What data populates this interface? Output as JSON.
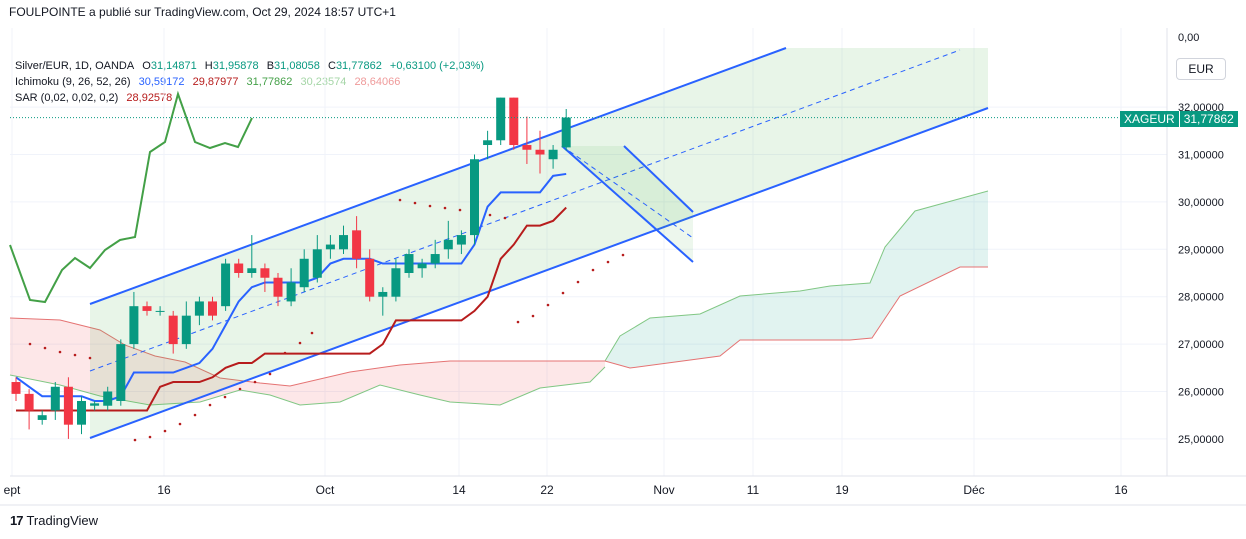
{
  "header": {
    "publisher_line": "FOULPOINTE a publié sur TradingView.com, Oct 29, 2024 18:57 UTC+1"
  },
  "legend": {
    "instrument": "Silver/EUR, 1D, OANDA",
    "o_label": "O",
    "o_value": "31,14871",
    "h_label": "H",
    "h_value": "31,95878",
    "b_label": "B",
    "b_value": "31,08058",
    "c_label": "C",
    "c_value": "31,77862",
    "change": "+0,63100 (+2,03%)",
    "ichimoku_name": "Ichimoku (9, 26, 52, 26)",
    "ichimoku_values": [
      "30,59172",
      "29,87977",
      "31,77862",
      "30,23574",
      "28,64066"
    ],
    "ichimoku_colors": [
      "#2962ff",
      "#b71c1c",
      "#43a047",
      "#a5d6a7",
      "#ef9a9a"
    ],
    "sar_name": "SAR (0,02, 0,02, 0,2)",
    "sar_value": "28,92578",
    "sar_color": "#b71c1c",
    "up_color": "#089981",
    "down_color": "#f23645"
  },
  "currency_button": "EUR",
  "price_tag": {
    "symbol": "XAGEUR",
    "price": "31,77862"
  },
  "footer": {
    "logo_text": "TradingView"
  },
  "chart_data": {
    "type": "candlestick",
    "title": "Silver/EUR, 1D, OANDA",
    "y_axis_labels": [
      "32,00000",
      "31,00000",
      "30,00000",
      "29,00000",
      "28,00000",
      "27,00000",
      "26,00000",
      "25,00000"
    ],
    "y_values": [
      32,
      31,
      30,
      29,
      28,
      27,
      26,
      25
    ],
    "y_zero_label": "0,00",
    "x_axis_labels": [
      "ept",
      "16",
      "Oct",
      "14",
      "22",
      "Nov",
      "11",
      "19",
      "Déc",
      "16"
    ],
    "last_price": 31.77862,
    "candles": [
      {
        "o": 26.2,
        "h": 26.3,
        "l": 25.8,
        "c": 25.95
      },
      {
        "o": 25.95,
        "h": 26.05,
        "l": 25.2,
        "c": 25.6
      },
      {
        "o": 25.4,
        "h": 25.6,
        "l": 25.3,
        "c": 25.5
      },
      {
        "o": 25.6,
        "h": 26.2,
        "l": 25.4,
        "c": 26.1
      },
      {
        "o": 26.1,
        "h": 26.3,
        "l": 25.0,
        "c": 25.3
      },
      {
        "o": 25.3,
        "h": 25.9,
        "l": 25.1,
        "c": 25.8
      },
      {
        "o": 25.7,
        "h": 25.8,
        "l": 25.6,
        "c": 25.75
      },
      {
        "o": 25.7,
        "h": 26.1,
        "l": 25.6,
        "c": 26.0
      },
      {
        "o": 25.8,
        "h": 27.1,
        "l": 25.7,
        "c": 27.0
      },
      {
        "o": 27.0,
        "h": 28.1,
        "l": 26.9,
        "c": 27.8
      },
      {
        "o": 27.8,
        "h": 27.9,
        "l": 27.6,
        "c": 27.7
      },
      {
        "o": 27.7,
        "h": 27.8,
        "l": 27.6,
        "c": 27.7
      },
      {
        "o": 27.6,
        "h": 27.7,
        "l": 26.8,
        "c": 27.0
      },
      {
        "o": 27.0,
        "h": 27.9,
        "l": 26.9,
        "c": 27.6
      },
      {
        "o": 27.6,
        "h": 28.0,
        "l": 27.4,
        "c": 27.9
      },
      {
        "o": 27.9,
        "h": 28.0,
        "l": 27.5,
        "c": 27.6
      },
      {
        "o": 27.8,
        "h": 28.8,
        "l": 27.7,
        "c": 28.7
      },
      {
        "o": 28.7,
        "h": 28.8,
        "l": 28.4,
        "c": 28.5
      },
      {
        "o": 28.5,
        "h": 29.3,
        "l": 28.4,
        "c": 28.6
      },
      {
        "o": 28.6,
        "h": 28.7,
        "l": 28.1,
        "c": 28.4
      },
      {
        "o": 28.4,
        "h": 28.5,
        "l": 27.8,
        "c": 28.0
      },
      {
        "o": 27.9,
        "h": 28.6,
        "l": 27.8,
        "c": 28.3
      },
      {
        "o": 28.2,
        "h": 29.0,
        "l": 28.1,
        "c": 28.8
      },
      {
        "o": 28.4,
        "h": 29.3,
        "l": 28.3,
        "c": 29.0
      },
      {
        "o": 29.0,
        "h": 29.3,
        "l": 28.8,
        "c": 29.1
      },
      {
        "o": 29.0,
        "h": 29.5,
        "l": 28.9,
        "c": 29.3
      },
      {
        "o": 29.4,
        "h": 29.7,
        "l": 28.6,
        "c": 28.8
      },
      {
        "o": 28.8,
        "h": 29.0,
        "l": 27.9,
        "c": 28.0
      },
      {
        "o": 28.0,
        "h": 28.2,
        "l": 27.6,
        "c": 28.1
      },
      {
        "o": 28.0,
        "h": 28.8,
        "l": 27.9,
        "c": 28.6
      },
      {
        "o": 28.5,
        "h": 29.0,
        "l": 28.4,
        "c": 28.9
      },
      {
        "o": 28.6,
        "h": 28.8,
        "l": 28.4,
        "c": 28.7
      },
      {
        "o": 28.7,
        "h": 29.2,
        "l": 28.6,
        "c": 28.9
      },
      {
        "o": 29.0,
        "h": 29.6,
        "l": 28.8,
        "c": 29.2
      },
      {
        "o": 29.1,
        "h": 29.4,
        "l": 28.9,
        "c": 29.3
      },
      {
        "o": 29.3,
        "h": 31.0,
        "l": 29.1,
        "c": 30.9
      },
      {
        "o": 31.2,
        "h": 31.5,
        "l": 30.9,
        "c": 31.3
      },
      {
        "o": 31.3,
        "h": 32.2,
        "l": 31.2,
        "c": 32.2
      },
      {
        "o": 32.2,
        "h": 32.2,
        "l": 31.1,
        "c": 31.2
      },
      {
        "o": 31.2,
        "h": 31.8,
        "l": 30.8,
        "c": 31.1
      },
      {
        "o": 31.1,
        "h": 31.5,
        "l": 30.6,
        "c": 31.0
      },
      {
        "o": 30.9,
        "h": 31.2,
        "l": 30.7,
        "c": 31.1
      },
      {
        "o": 31.15,
        "h": 31.96,
        "l": 31.08,
        "c": 31.78
      }
    ],
    "tenkan": [
      26.3,
      26.1,
      25.9,
      25.9,
      25.9,
      25.9,
      25.8,
      25.8,
      25.9,
      26.4,
      26.4,
      26.4,
      26.4,
      26.5,
      26.6,
      26.9,
      27.4,
      27.9,
      28.2,
      28.3,
      28.3,
      28.3,
      28.3,
      28.4,
      28.7,
      28.8,
      28.8,
      28.8,
      28.7,
      28.7,
      28.7,
      28.7,
      28.7,
      28.7,
      28.7,
      29.1,
      29.9,
      30.2,
      30.2,
      30.2,
      30.2,
      30.55,
      30.59
    ],
    "kijun": [
      25.6,
      25.6,
      25.6,
      25.6,
      25.6,
      25.6,
      25.6,
      25.6,
      25.6,
      25.6,
      25.6,
      26.1,
      26.2,
      26.2,
      26.2,
      26.3,
      26.5,
      26.6,
      26.6,
      26.8,
      26.8,
      26.8,
      26.8,
      26.8,
      26.8,
      26.8,
      26.8,
      26.8,
      27.0,
      27.5,
      27.5,
      27.5,
      27.5,
      27.5,
      27.5,
      27.7,
      28.0,
      28.8,
      29.1,
      29.5,
      29.5,
      29.6,
      29.88
    ]
  }
}
